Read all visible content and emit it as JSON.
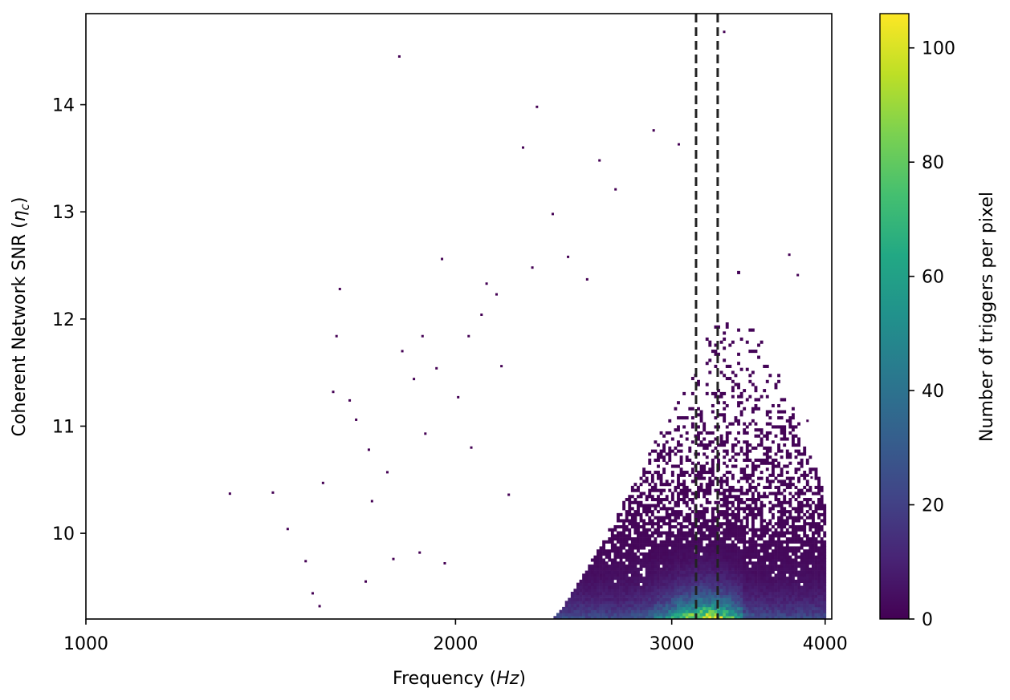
{
  "chart_data": {
    "type": "heatmap",
    "xlabel_prefix": "Frequency (",
    "xlabel_var": "Hz",
    "xlabel_suffix": ")",
    "ylabel_prefix": "Coherent Network SNR (",
    "ylabel_var": "η",
    "ylabel_sub": "c",
    "ylabel_suffix": ")",
    "x_scale": "log",
    "xlim": [
      1000,
      4050
    ],
    "ylim": [
      9.2,
      14.85
    ],
    "x_ticks": [
      1000,
      2000,
      3000,
      4000
    ],
    "x_tick_labels": [
      "1000",
      "2000",
      "3000",
      "4000"
    ],
    "y_ticks": [
      10,
      11,
      12,
      13,
      14
    ],
    "y_tick_labels": [
      "10",
      "11",
      "12",
      "13",
      "14"
    ],
    "colorbar": {
      "label": "Number of triggers per pixel",
      "range": [
        0,
        106
      ],
      "ticks": [
        0,
        20,
        40,
        60,
        80,
        100
      ],
      "tick_labels": [
        "0",
        "20",
        "40",
        "60",
        "80",
        "100"
      ],
      "colormap": "viridis"
    },
    "reference_lines": [
      {
        "x": 3140,
        "style": "dashed",
        "color": "#222222"
      },
      {
        "x": 3270,
        "style": "dashed",
        "color": "#222222"
      }
    ],
    "density_model": {
      "peak_frequency": 3200,
      "upper_edge_frequency": 3420,
      "lower_edge_frequency": 2400,
      "peak_count": 105,
      "snr_floor": 9.2
    },
    "sparse_points": [
      [
        1800,
        14.45
      ],
      [
        2330,
        13.98
      ],
      [
        2270,
        13.6
      ],
      [
        2620,
        13.48
      ],
      [
        2900,
        13.76
      ],
      [
        1310,
        10.37
      ],
      [
        1420,
        10.38
      ],
      [
        1460,
        10.04
      ],
      [
        1510,
        9.74
      ],
      [
        1530,
        9.44
      ],
      [
        1560,
        10.47
      ],
      [
        1590,
        11.32
      ],
      [
        1600,
        11.84
      ],
      [
        1610,
        12.28
      ],
      [
        1660,
        11.06
      ],
      [
        1640,
        11.24
      ],
      [
        1700,
        10.78
      ],
      [
        1710,
        10.3
      ],
      [
        1760,
        10.57
      ],
      [
        1810,
        11.7
      ],
      [
        1850,
        11.44
      ],
      [
        1880,
        11.84
      ],
      [
        1950,
        12.56
      ],
      [
        1930,
        11.54
      ],
      [
        2010,
        11.27
      ],
      [
        2050,
        11.84
      ],
      [
        2100,
        12.04
      ],
      [
        2120,
        12.33
      ],
      [
        2160,
        12.23
      ],
      [
        1890,
        10.93
      ],
      [
        1870,
        9.82
      ],
      [
        1960,
        9.72
      ],
      [
        2060,
        10.8
      ],
      [
        1550,
        9.32
      ],
      [
        1690,
        9.55
      ],
      [
        1780,
        9.76
      ],
      [
        2400,
        12.98
      ],
      [
        2470,
        12.58
      ],
      [
        2560,
        12.37
      ],
      [
        2180,
        11.56
      ],
      [
        2210,
        10.36
      ],
      [
        2310,
        12.48
      ],
      [
        2700,
        13.21
      ],
      [
        3040,
        13.63
      ],
      [
        3310,
        14.68
      ],
      [
        3800,
        12.41
      ],
      [
        3900,
        10.52
      ],
      [
        3950,
        10.18
      ],
      [
        3870,
        11.05
      ],
      [
        3740,
        12.6
      ]
    ]
  }
}
